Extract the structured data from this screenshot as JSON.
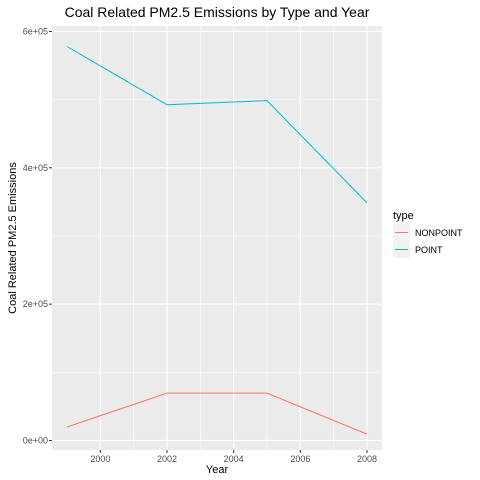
{
  "chart_data": {
    "type": "line",
    "title": "Coal Related PM2.5 Emissions by Type and Year",
    "xlabel": "Year",
    "ylabel": "Coal Related PM2.5 Emissions",
    "x": [
      1999,
      2002,
      2005,
      2008
    ],
    "xlim": [
      1998.55,
      2008.45
    ],
    "ylim": [
      -14000,
      608000
    ],
    "x_ticks": [
      2000,
      2002,
      2004,
      2006,
      2008
    ],
    "x_tick_labels": [
      "2000",
      "2002",
      "2004",
      "2006",
      "2008"
    ],
    "y_ticks": [
      0,
      200000,
      400000,
      600000
    ],
    "y_tick_labels": [
      "0e+00",
      "2e+05",
      "4e+05",
      "6e+05"
    ],
    "grid": true,
    "legend": {
      "title": "type",
      "placement": "right"
    },
    "series": [
      {
        "name": "NONPOINT",
        "color": "#f8766d",
        "values": [
          19700,
          69400,
          69400,
          9300
        ]
      },
      {
        "name": "POINT",
        "color": "#00bfc4",
        "values": [
          578000,
          492500,
          498500,
          348500
        ]
      }
    ]
  }
}
